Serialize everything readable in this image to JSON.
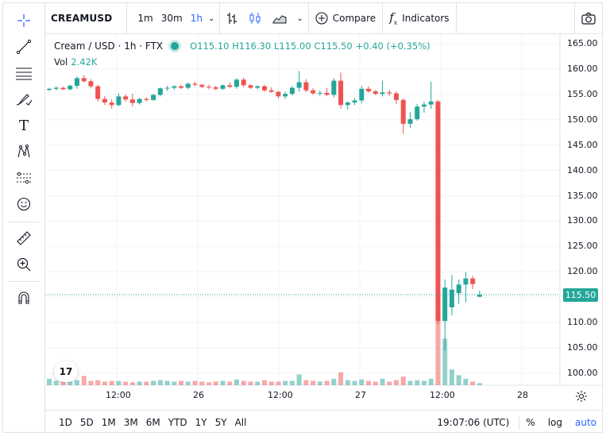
{
  "toolbar": {
    "symbol": "CREAMUSD",
    "intervals": [
      "1m",
      "30m",
      "1h"
    ],
    "active_interval": "1h",
    "compare_label": "Compare",
    "indicators_label": "Indicators"
  },
  "legend": {
    "title": "Cream / USD · 1h · FTX",
    "open": "O115.10",
    "high": "H116.30",
    "low": "L115.00",
    "close": "C115.50",
    "change": "+0.40 (+0.35%)",
    "volume_label": "Vol",
    "volume_value": "2.42K"
  },
  "price_axis": [
    "165.00",
    "160.00",
    "155.00",
    "150.00",
    "145.00",
    "140.00",
    "135.00",
    "130.00",
    "125.00",
    "120.00",
    "115.00",
    "110.00",
    "105.00",
    "100.00"
  ],
  "current_price": "115.50",
  "time_axis": [
    "12:00",
    "26",
    "12:00",
    "27",
    "12:00",
    "28"
  ],
  "bottom": {
    "ranges": [
      "1D",
      "5D",
      "1M",
      "3M",
      "6M",
      "YTD",
      "1Y",
      "5Y",
      "All"
    ],
    "clock": "19:07:06 (UTC)",
    "percent_label": "%",
    "log_label": "log",
    "auto_label": "auto"
  },
  "logo_text": "17",
  "colors": {
    "up": "#26a69a",
    "down": "#ef5350",
    "accent": "#2962ff"
  },
  "chart_data": {
    "type": "candlestick",
    "ylim": [
      97,
      166
    ],
    "candles": [
      [
        155.9,
        156.3,
        155.6,
        156.1
      ],
      [
        156.1,
        156.6,
        155.8,
        156.3
      ],
      [
        156.3,
        156.5,
        155.9,
        156.0
      ],
      [
        156.0,
        156.9,
        155.8,
        156.7
      ],
      [
        156.7,
        158.5,
        156.1,
        158.2
      ],
      [
        158.2,
        158.8,
        157.3,
        157.6
      ],
      [
        157.6,
        158.0,
        156.2,
        156.6
      ],
      [
        156.6,
        156.9,
        153.6,
        154.1
      ],
      [
        154.1,
        154.7,
        152.9,
        153.4
      ],
      [
        153.4,
        154.0,
        152.2,
        152.9
      ],
      [
        152.9,
        155.2,
        152.6,
        154.6
      ],
      [
        154.6,
        155.0,
        153.6,
        154.0
      ],
      [
        154.0,
        155.1,
        152.6,
        153.3
      ],
      [
        153.3,
        154.3,
        153.0,
        154.1
      ],
      [
        154.1,
        154.4,
        153.6,
        153.9
      ],
      [
        153.9,
        155.1,
        153.7,
        154.9
      ],
      [
        154.9,
        156.4,
        154.6,
        156.2
      ],
      [
        156.2,
        156.7,
        155.7,
        156.3
      ],
      [
        156.3,
        156.8,
        155.9,
        156.6
      ],
      [
        156.6,
        156.9,
        156.0,
        156.3
      ],
      [
        156.3,
        157.3,
        156.0,
        157.1
      ],
      [
        157.1,
        157.5,
        156.6,
        156.9
      ],
      [
        156.9,
        157.0,
        156.2,
        156.5
      ],
      [
        156.5,
        156.9,
        156.0,
        156.4
      ],
      [
        156.4,
        156.7,
        155.8,
        156.1
      ],
      [
        156.1,
        157.0,
        155.9,
        156.8
      ],
      [
        156.8,
        157.4,
        156.3,
        156.5
      ],
      [
        156.5,
        158.2,
        156.1,
        157.9
      ],
      [
        157.9,
        158.3,
        156.4,
        156.8
      ],
      [
        156.8,
        157.0,
        156.1,
        156.3
      ],
      [
        156.3,
        156.8,
        156.0,
        156.6
      ],
      [
        156.6,
        156.9,
        155.5,
        155.8
      ],
      [
        155.8,
        156.4,
        155.3,
        155.5
      ],
      [
        155.5,
        155.7,
        154.2,
        154.6
      ],
      [
        154.6,
        155.5,
        154.1,
        155.1
      ],
      [
        155.1,
        156.6,
        154.8,
        156.3
      ],
      [
        156.3,
        159.6,
        155.5,
        157.4
      ],
      [
        157.4,
        158.0,
        155.4,
        155.8
      ],
      [
        155.8,
        156.2,
        154.9,
        155.2
      ],
      [
        155.2,
        155.8,
        154.7,
        155.3
      ],
      [
        155.3,
        156.3,
        154.7,
        154.9
      ],
      [
        154.9,
        158.2,
        154.4,
        157.7
      ],
      [
        157.7,
        159.3,
        152.2,
        152.9
      ],
      [
        152.9,
        153.6,
        152.0,
        153.4
      ],
      [
        153.4,
        154.3,
        152.9,
        153.8
      ],
      [
        153.8,
        156.7,
        153.2,
        156.1
      ],
      [
        156.1,
        156.6,
        155.3,
        155.6
      ],
      [
        155.6,
        155.9,
        154.9,
        155.1
      ],
      [
        155.1,
        157.7,
        154.6,
        155.4
      ],
      [
        155.4,
        155.9,
        154.7,
        155.2
      ],
      [
        155.2,
        155.6,
        153.1,
        153.9
      ],
      [
        153.9,
        154.2,
        147.2,
        149.2
      ],
      [
        149.2,
        151.5,
        148.4,
        150.1
      ],
      [
        150.1,
        153.1,
        149.8,
        152.6
      ],
      [
        152.6,
        153.6,
        151.4,
        153.0
      ],
      [
        153.0,
        157.5,
        152.2,
        153.6
      ],
      [
        153.6,
        153.9,
        109.6,
        110.3
      ],
      [
        110.3,
        118.5,
        104.5,
        116.9
      ],
      [
        113.0,
        119.4,
        111.4,
        116.5
      ],
      [
        115.8,
        118.5,
        113.7,
        117.5
      ],
      [
        117.5,
        120.0,
        114.0,
        118.7
      ],
      [
        118.7,
        119.2,
        116.6,
        117.6
      ],
      [
        115.1,
        116.3,
        115.0,
        115.5
      ]
    ],
    "volume": [
      0.09,
      0.06,
      0.07,
      0.05,
      0.07,
      0.13,
      0.06,
      0.07,
      0.05,
      0.06,
      0.06,
      0.05,
      0.04,
      0.05,
      0.05,
      0.06,
      0.07,
      0.06,
      0.05,
      0.06,
      0.05,
      0.06,
      0.05,
      0.04,
      0.05,
      0.06,
      0.05,
      0.08,
      0.06,
      0.05,
      0.05,
      0.07,
      0.05,
      0.05,
      0.06,
      0.06,
      0.15,
      0.07,
      0.06,
      0.05,
      0.06,
      0.09,
      0.18,
      0.07,
      0.06,
      0.08,
      0.06,
      0.05,
      0.09,
      0.05,
      0.07,
      0.12,
      0.06,
      0.07,
      0.06,
      0.09,
      1.0,
      0.65,
      0.22,
      0.14,
      0.09,
      0.05,
      0.03
    ]
  }
}
